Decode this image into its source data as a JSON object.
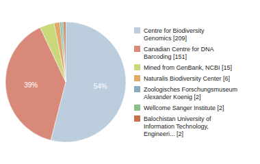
{
  "chart_data": {
    "type": "pie",
    "categories": [
      "Centre for Biodiversity\nGenomics [209]",
      "Canadian Centre for DNA\nBarcoding [151]",
      "Mined from GenBank, NCBI [15]",
      "Naturalis Biodiversity Center [6]",
      "Zoologisches Forschungsmuseum\nAlexander Koenig [2]",
      "Wellcome Sanger Institute [2]",
      "Balochistan University of\nInformation Technology,\nEngineeri... [2]"
    ],
    "values": [
      54.00516795865633,
      39.01808785529716,
      3.875968992248062,
      1.550387596899225,
      0.5167958656330749,
      0.5167958656330749,
      0.5167958656330749
    ],
    "value_labels": [
      "54%",
      "39%",
      null,
      null,
      null,
      null,
      null
    ],
    "data_labels": true,
    "colors": [
      "#bccede",
      "#d9897a",
      "#c8d87a",
      "#dfa96a",
      "#8aaabf",
      "#8abf8a",
      "#c8704a"
    ],
    "legend": "right"
  }
}
